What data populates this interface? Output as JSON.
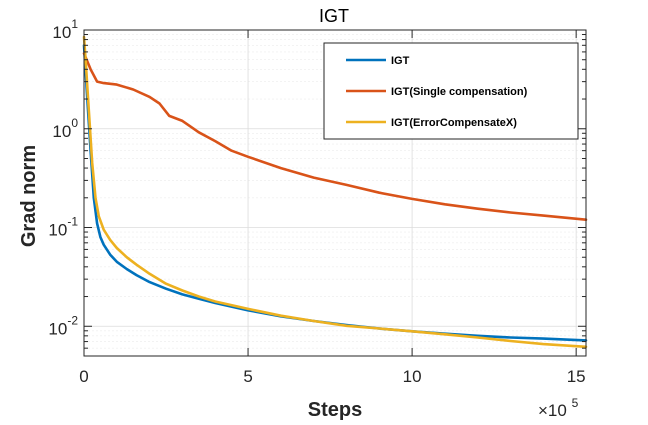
{
  "chart_data": {
    "type": "line",
    "title": "IGT",
    "xlabel": "Steps",
    "ylabel": "Grad norm",
    "x_multiplier": "×10",
    "x_multiplier_exp": "5",
    "xlim": [
      0,
      15.3
    ],
    "ylim": [
      0.005,
      10
    ],
    "y_scale": "log",
    "grid": true,
    "legend_position": "top-right",
    "x_ticks": [
      {
        "value": 0,
        "label": "0"
      },
      {
        "value": 5,
        "label": "5"
      },
      {
        "value": 10,
        "label": "10"
      },
      {
        "value": 15,
        "label": "15"
      }
    ],
    "y_ticks": [
      {
        "value": 0.01,
        "base": "10",
        "exp": "-2"
      },
      {
        "value": 0.1,
        "base": "10",
        "exp": "-1"
      },
      {
        "value": 1,
        "base": "10",
        "exp": "0"
      },
      {
        "value": 10,
        "base": "10",
        "exp": "1"
      }
    ],
    "series": [
      {
        "name": "IGT",
        "color": "#0072bd",
        "x": [
          0,
          0.1,
          0.2,
          0.3,
          0.4,
          0.5,
          0.6,
          0.8,
          1.0,
          1.3,
          1.6,
          2.0,
          2.5,
          3.0,
          3.5,
          4.0,
          5.0,
          6.0,
          7.0,
          8.0,
          9.0,
          10.0,
          11.0,
          12.0,
          13.0,
          14.0,
          15.3
        ],
        "y": [
          7.0,
          2.0,
          0.6,
          0.2,
          0.11,
          0.08,
          0.067,
          0.053,
          0.045,
          0.038,
          0.033,
          0.028,
          0.024,
          0.021,
          0.019,
          0.0172,
          0.0145,
          0.0126,
          0.0113,
          0.0103,
          0.0095,
          0.0089,
          0.0084,
          0.008,
          0.0077,
          0.0075,
          0.0072
        ]
      },
      {
        "name": "IGT(Single compensation)",
        "color": "#d95319",
        "x": [
          0,
          0.2,
          0.4,
          0.6,
          1.0,
          1.5,
          2.0,
          2.3,
          2.6,
          3.0,
          3.5,
          4.0,
          4.5,
          5.0,
          6.0,
          7.0,
          8.0,
          9.0,
          10.0,
          11.0,
          12.0,
          13.0,
          14.0,
          15.3
        ],
        "y": [
          5.8,
          4.0,
          3.0,
          2.9,
          2.8,
          2.5,
          2.1,
          1.8,
          1.35,
          1.2,
          0.92,
          0.75,
          0.6,
          0.52,
          0.4,
          0.32,
          0.27,
          0.225,
          0.195,
          0.172,
          0.155,
          0.142,
          0.132,
          0.12
        ]
      },
      {
        "name": "IGT(ErrorCompensateX)",
        "color": "#edb120",
        "x": [
          0,
          0.05,
          0.15,
          0.25,
          0.35,
          0.45,
          0.6,
          0.8,
          1.0,
          1.3,
          1.6,
          2.0,
          2.5,
          3.0,
          3.5,
          4.0,
          5.0,
          6.0,
          7.0,
          8.0,
          9.0,
          10.0,
          11.0,
          12.0,
          13.0,
          14.0,
          15.3
        ],
        "y": [
          8.5,
          5.0,
          1.5,
          0.45,
          0.2,
          0.13,
          0.095,
          0.075,
          0.062,
          0.05,
          0.042,
          0.034,
          0.027,
          0.023,
          0.02,
          0.0178,
          0.015,
          0.0128,
          0.0113,
          0.0101,
          0.0095,
          0.0089,
          0.0083,
          0.0077,
          0.0071,
          0.0066,
          0.0062
        ]
      }
    ]
  }
}
